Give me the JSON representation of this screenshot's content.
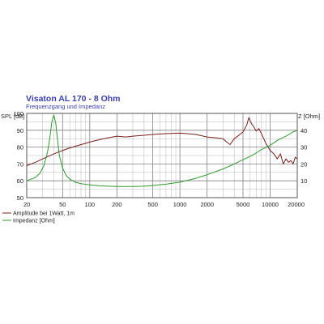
{
  "chart_data": {
    "type": "line",
    "title": "Visaton AL 170 - 8 Ohm",
    "subtitle": "Frequenzgang und Impedanz",
    "y_left_label": "SPL [dB]",
    "y_right_label": "Z [Ohm]",
    "x_scale": "log",
    "xlim": [
      20,
      20000
    ],
    "ylim_left": [
      50,
      100
    ],
    "ylim_right": [
      0,
      50
    ],
    "x_ticks": [
      20,
      50,
      100,
      200,
      500,
      1000,
      2000,
      5000,
      10000,
      20000
    ],
    "x_tick_labels": [
      "20",
      "50",
      "100",
      "200",
      "500",
      "1000",
      "2000",
      "5000",
      "10000",
      "20000"
    ],
    "y_left_ticks": [
      50,
      60,
      70,
      80,
      90,
      100
    ],
    "y_right_ticks": [
      10,
      20,
      30,
      40
    ],
    "grid": true,
    "legend_position": "bottom-left",
    "colors": {
      "spl": "#7a1f1f",
      "impedance": "#2e9a2e",
      "title": "#3a3fb0",
      "grid_major": "#808080",
      "grid_minor": "#b8b8b8",
      "plot_border": "#555555"
    },
    "series": [
      {
        "name": "Amplitude bei 1Watt, 1m",
        "axis": "left",
        "color": "#7a1f1f",
        "x": [
          20,
          25,
          30,
          40,
          50,
          60,
          80,
          100,
          130,
          160,
          200,
          250,
          300,
          400,
          500,
          700,
          1000,
          1200,
          1500,
          2000,
          2500,
          3000,
          3300,
          3600,
          4000,
          4500,
          5000,
          5500,
          5800,
          6200,
          6600,
          7000,
          7500,
          8000,
          8500,
          9000,
          9500,
          10000,
          11000,
          12000,
          13000,
          14000,
          15000,
          16000,
          17000,
          18000,
          19000,
          20000
        ],
        "y": [
          69,
          71,
          73,
          76,
          78,
          79.5,
          81.5,
          83,
          84.5,
          85.5,
          86.5,
          86,
          86.5,
          87,
          87.5,
          88,
          88.3,
          88,
          87.5,
          86,
          85.5,
          85,
          83,
          81.5,
          85,
          87,
          89,
          93,
          97.5,
          94,
          92,
          89.5,
          91,
          88,
          85,
          82,
          80,
          78,
          76,
          73,
          76,
          70,
          73,
          71,
          72,
          70,
          74,
          73
        ]
      },
      {
        "name": "Impedanz [Ohm]",
        "axis": "right",
        "color": "#2e9a2e",
        "x": [
          20,
          25,
          28,
          31,
          34,
          36,
          38,
          40,
          42,
          44,
          46,
          50,
          55,
          60,
          70,
          80,
          100,
          130,
          160,
          200,
          300,
          400,
          500,
          700,
          1000,
          1500,
          2000,
          3000,
          4000,
          5000,
          6000,
          7000,
          8000,
          10000,
          12000,
          15000,
          18000,
          20000
        ],
        "y": [
          10,
          12,
          14.5,
          19,
          27,
          35,
          45,
          49,
          44,
          34,
          25,
          17.5,
          13,
          11,
          9,
          8.3,
          7.6,
          7,
          6.8,
          6.6,
          6.6,
          6.8,
          7.2,
          8,
          9.2,
          11.5,
          13.6,
          17,
          20,
          22.5,
          24.5,
          26.5,
          28.5,
          31,
          34,
          36.5,
          39,
          40
        ]
      }
    ]
  }
}
